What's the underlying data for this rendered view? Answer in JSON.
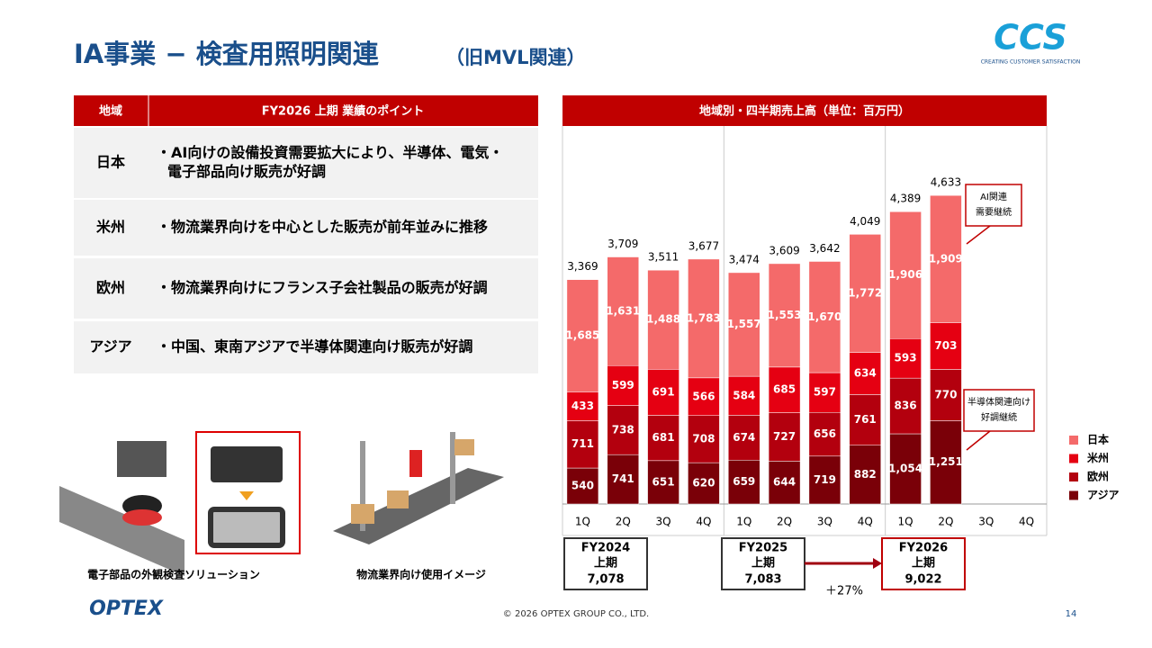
{
  "header": {
    "title": "IA事業 − 検査用照明関連",
    "title_suffix": "（旧MVL関連）",
    "logo_main": "CCS",
    "logo_tagline": "CREATING CUSTOMER SATISFACTION"
  },
  "table": {
    "columns": [
      "地域",
      "FY2026 上期 業績のポイント"
    ],
    "rows": [
      {
        "region": "日本",
        "lines": [
          "・AI向けの設備投資需要拡大により、半導体、電気・",
          "電子部品向け販売が好調"
        ]
      },
      {
        "region": "米州",
        "lines": [
          "・物流業界向けを中心とした販売が前年並みに推移"
        ]
      },
      {
        "region": "欧州",
        "lines": [
          "・物流業界向けにフランス子会社製品の販売が好調"
        ]
      },
      {
        "region": "アジア",
        "lines": [
          "・中国、東南アジアで半導体関連向け販売が好調"
        ]
      }
    ]
  },
  "images": [
    "電子部品の外観検査ソリューション",
    "物流業界向け使用イメージ"
  ],
  "chart_data": {
    "type": "stacked_bar",
    "title": "地域別・四半期売上高（単位：百万円）",
    "categories": [
      "1Q",
      "2Q",
      "3Q",
      "4Q",
      "1Q",
      "2Q",
      "3Q",
      "4Q",
      "1Q",
      "2Q",
      "3Q",
      "4Q"
    ],
    "series": [
      {
        "name": "日本",
        "color": "#f46a6a",
        "values": [
          1685,
          1631,
          1488,
          1783,
          1557,
          1553,
          1670,
          1772,
          1906,
          1909,
          null,
          null
        ],
        "value_labels": [
          "1,685",
          "1,631",
          "1,488",
          "1,783",
          "1,557",
          "1,553",
          "1,670",
          "1,772",
          "1,906",
          "1,909",
          null,
          null
        ]
      },
      {
        "name": "米州",
        "color": "#e50012",
        "values": [
          433,
          599,
          691,
          566,
          584,
          685,
          597,
          634,
          593,
          703,
          null,
          null
        ]
      },
      {
        "name": "欧州",
        "color": "#b3000e",
        "values": [
          711,
          738,
          681,
          708,
          674,
          727,
          656,
          761,
          836,
          770,
          null,
          null
        ]
      },
      {
        "name": "アジア",
        "color": "#7a0008",
        "values": [
          540,
          741,
          651,
          620,
          659,
          644,
          719,
          882,
          1054,
          1251,
          null,
          null
        ],
        "value_labels": [
          "540",
          "741",
          "651",
          "620",
          "659",
          "644",
          "719",
          "882",
          "1,054",
          "1,251",
          null,
          null
        ]
      }
    ],
    "totals": [
      3369,
      3709,
      3511,
      3677,
      3474,
      3609,
      3642,
      4049,
      4389,
      4633,
      null,
      null
    ],
    "total_labels": [
      "3,369",
      "3,709",
      "3,511",
      "3,677",
      "3,474",
      "3,609",
      "3,642",
      "4,049",
      "4,389",
      "4,633",
      null,
      null
    ],
    "summary": [
      {
        "period": "FY2024",
        "half": "上期",
        "total": "7,078"
      },
      {
        "period": "FY2025",
        "half": "上期",
        "total": "7,083"
      },
      {
        "period": "FY2026",
        "half": "上期",
        "total": "9,022"
      }
    ],
    "growth": "＋27%",
    "annotations": [
      [
        "AI関連",
        "需要継続"
      ],
      [
        "半導体関連向け",
        "好調継続"
      ]
    ]
  },
  "footer": {
    "brand": "OPTEX",
    "copyright": "© 2026 OPTEX GROUP CO., LTD.",
    "page": "14"
  }
}
